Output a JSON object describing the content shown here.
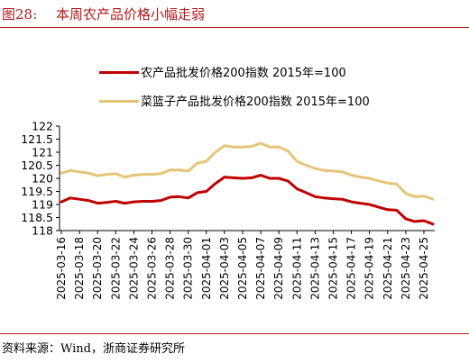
{
  "figure": {
    "label": "图28:",
    "title": "本周农产品价格小幅走弱"
  },
  "source": "资料来源：Wind，浙商证券研究所",
  "colors": {
    "accent": "#b11a1a",
    "series_red": "#c00000",
    "series_gold": "#e6c478",
    "axis": "#000000"
  },
  "chart_data": {
    "type": "line",
    "title": "",
    "xlabel": "",
    "ylabel": "",
    "ylim": [
      118,
      122
    ],
    "y_ticks": [
      "118",
      "118.5",
      "119",
      "119.5",
      "120",
      "120.5",
      "121",
      "121.5",
      "122"
    ],
    "x_tick_labels": [
      "2025-03-16",
      "2025-03-18",
      "2025-03-20",
      "2025-03-22",
      "2025-03-24",
      "2025-03-26",
      "2025-03-28",
      "2025-03-30",
      "2025-04-01",
      "2025-04-03",
      "2025-04-05",
      "2025-04-07",
      "2025-04-09",
      "2025-04-11",
      "2025-04-13",
      "2025-04-15",
      "2025-04-17",
      "2025-04-19",
      "2025-04-21",
      "2025-04-23",
      "2025-04-25"
    ],
    "x": [
      "2025-03-16",
      "2025-03-17",
      "2025-03-18",
      "2025-03-19",
      "2025-03-20",
      "2025-03-21",
      "2025-03-22",
      "2025-03-23",
      "2025-03-24",
      "2025-03-25",
      "2025-03-26",
      "2025-03-27",
      "2025-03-28",
      "2025-03-29",
      "2025-03-30",
      "2025-03-31",
      "2025-04-01",
      "2025-04-02",
      "2025-04-03",
      "2025-04-04",
      "2025-04-05",
      "2025-04-06",
      "2025-04-07",
      "2025-04-08",
      "2025-04-09",
      "2025-04-10",
      "2025-04-11",
      "2025-04-12",
      "2025-04-13",
      "2025-04-14",
      "2025-04-15",
      "2025-04-16",
      "2025-04-17",
      "2025-04-18",
      "2025-04-19",
      "2025-04-20",
      "2025-04-21",
      "2025-04-22",
      "2025-04-23",
      "2025-04-24",
      "2025-04-25",
      "2025-04-26"
    ],
    "series": [
      {
        "name": "农产品批发价格200指数 2015年=100",
        "color": "#c00000",
        "values": [
          119.1,
          119.25,
          119.2,
          119.15,
          119.05,
          119.08,
          119.12,
          119.05,
          119.1,
          119.12,
          119.12,
          119.15,
          119.28,
          119.3,
          119.25,
          119.45,
          119.5,
          119.8,
          120.05,
          120.02,
          120.0,
          120.02,
          120.12,
          120.0,
          120.0,
          119.9,
          119.6,
          119.45,
          119.3,
          119.25,
          119.22,
          119.2,
          119.1,
          119.05,
          119.0,
          118.9,
          118.8,
          118.78,
          118.45,
          118.35,
          118.38,
          118.25
        ]
      },
      {
        "name": "菜篮子产品批发价格200指数 2015年=100",
        "color": "#e6c478",
        "values": [
          120.2,
          120.3,
          120.25,
          120.2,
          120.1,
          120.15,
          120.18,
          120.05,
          120.12,
          120.15,
          120.15,
          120.18,
          120.32,
          120.32,
          120.28,
          120.58,
          120.65,
          121.0,
          121.25,
          121.2,
          121.2,
          121.22,
          121.35,
          121.2,
          121.2,
          121.05,
          120.65,
          120.5,
          120.38,
          120.3,
          120.28,
          120.25,
          120.12,
          120.05,
          120.0,
          119.9,
          119.82,
          119.78,
          119.42,
          119.3,
          119.32,
          119.2
        ]
      }
    ],
    "legend_position": "top-left",
    "grid": false
  }
}
